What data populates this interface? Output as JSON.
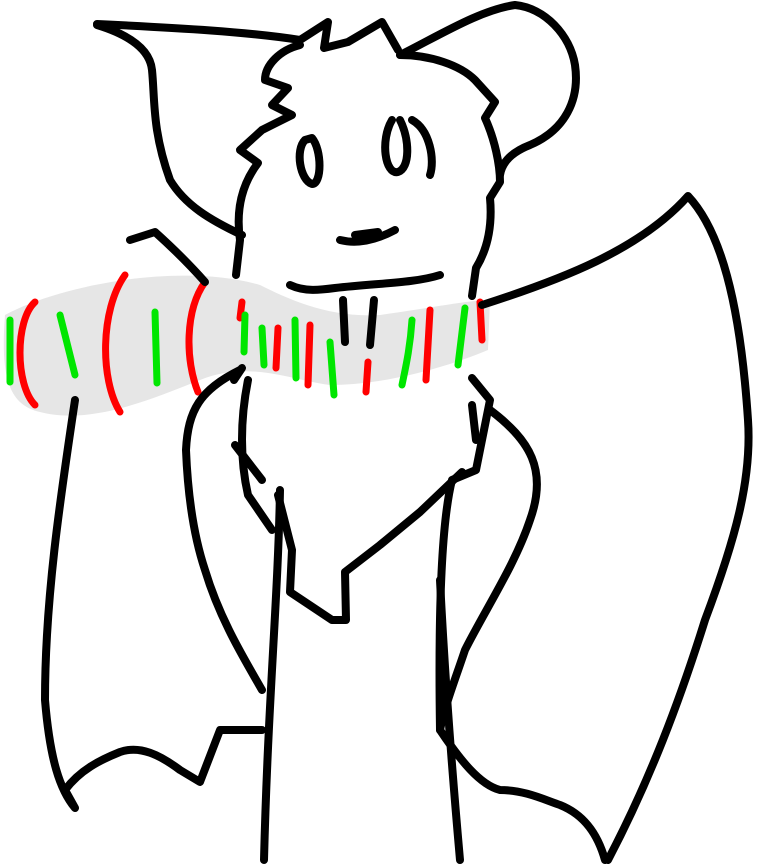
{
  "drawing": {
    "subject_icon": "bat-creature-with-candy-cane",
    "colors": {
      "background": "#ffffff",
      "outline": "#000000",
      "candy_cane_body": "#e6e6e6",
      "stripe_red": "#ff0000",
      "stripe_green": "#00e600"
    }
  }
}
